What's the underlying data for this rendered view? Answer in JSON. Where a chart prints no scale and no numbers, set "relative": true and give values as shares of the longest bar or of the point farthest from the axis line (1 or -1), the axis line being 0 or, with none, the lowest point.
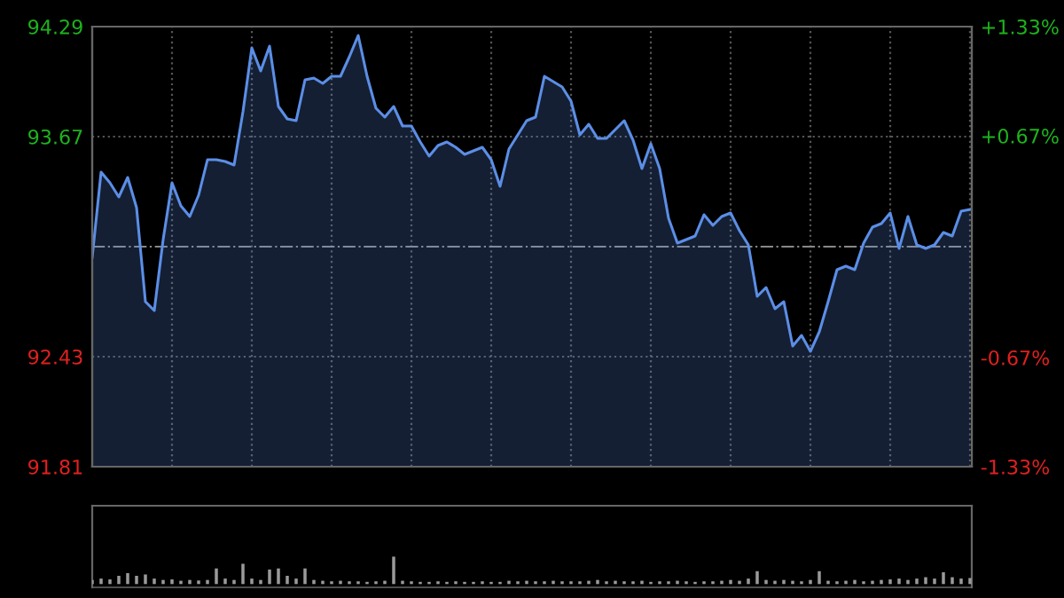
{
  "chart_data": [
    {
      "type": "area",
      "categories": [
        null,
        null,
        null,
        null,
        null,
        null,
        null,
        null,
        null,
        null,
        null,
        null,
        null,
        null,
        null,
        null,
        null,
        null,
        null,
        null,
        null,
        null,
        null,
        null,
        null,
        null,
        null,
        null,
        null,
        null,
        null,
        null,
        null,
        null,
        null,
        null,
        null,
        null,
        null,
        null,
        null,
        null,
        null,
        null,
        null,
        null,
        null,
        null,
        null,
        null,
        null,
        null,
        null,
        null,
        null,
        null,
        null,
        null,
        null,
        null,
        null,
        null,
        null,
        null,
        null,
        null,
        null,
        null,
        null,
        null,
        null,
        null,
        null,
        null,
        null,
        null,
        null,
        null,
        null,
        null,
        null,
        null,
        null,
        null,
        null,
        null,
        null,
        null,
        null,
        null,
        null,
        null,
        null,
        null,
        null,
        null,
        null,
        null,
        null,
        null
      ],
      "series": [
        {
          "color": "#5b8ee6",
          "values": [
            92.99,
            93.47,
            93.41,
            93.33,
            93.44,
            93.27,
            92.74,
            92.69,
            93.09,
            93.41,
            93.28,
            93.22,
            93.34,
            93.54,
            93.54,
            93.53,
            93.51,
            93.81,
            94.17,
            94.04,
            94.18,
            93.84,
            93.77,
            93.76,
            93.99,
            94.0,
            93.97,
            94.01,
            94.01,
            94.12,
            94.24,
            94.01,
            93.83,
            93.78,
            93.84,
            93.73,
            93.73,
            93.64,
            93.56,
            93.62,
            93.64,
            93.61,
            93.57,
            93.59,
            93.61,
            93.54,
            93.39,
            93.6,
            93.68,
            93.76,
            93.78,
            94.01,
            93.98,
            93.95,
            93.87,
            93.68,
            93.74,
            93.66,
            93.66,
            93.71,
            93.76,
            93.65,
            93.49,
            93.63,
            93.49,
            93.21,
            93.07,
            93.09,
            93.11,
            93.23,
            93.17,
            93.22,
            93.24,
            93.14,
            93.06,
            92.77,
            92.82,
            92.7,
            92.74,
            92.49,
            92.55,
            92.46,
            92.57,
            92.74,
            92.92,
            92.94,
            92.92,
            93.07,
            93.16,
            93.18,
            93.24,
            93.04,
            93.22,
            93.06,
            93.04,
            93.06,
            93.13,
            93.11,
            93.25,
            93.26
          ]
        }
      ],
      "ylim": [
        91.81,
        94.29
      ],
      "yticks": [
        91.81,
        92.43,
        93.67,
        94.29
      ],
      "y2lim": [
        -1.33,
        1.33
      ],
      "y2ticks": [
        {
          "value": -1.33,
          "label": "-1.33%"
        },
        {
          "value": -0.67,
          "label": "-0.67%"
        },
        {
          "value": 0.67,
          "label": "+0.67%"
        },
        {
          "value": 1.33,
          "label": "+1.33%"
        }
      ],
      "ref_lines": [
        {
          "axis": "y",
          "value": 93.05,
          "color": "#888888",
          "line_style": "dashdot"
        }
      ],
      "grid": true
    },
    {
      "type": "bar",
      "relative": true,
      "color": "#9a9a9a",
      "categories": [
        null,
        null,
        null,
        null,
        null,
        null,
        null,
        null,
        null,
        null,
        null,
        null,
        null,
        null,
        null,
        null,
        null,
        null,
        null,
        null,
        null,
        null,
        null,
        null,
        null,
        null,
        null,
        null,
        null,
        null,
        null,
        null,
        null,
        null,
        null,
        null,
        null,
        null,
        null,
        null,
        null,
        null,
        null,
        null,
        null,
        null,
        null,
        null,
        null,
        null,
        null,
        null,
        null,
        null,
        null,
        null,
        null,
        null,
        null,
        null,
        null,
        null,
        null,
        null,
        null,
        null,
        null,
        null,
        null,
        null,
        null,
        null,
        null,
        null,
        null,
        null,
        null,
        null,
        null,
        null,
        null,
        null,
        null,
        null,
        null,
        null,
        null,
        null,
        null,
        null,
        null,
        null,
        null,
        null,
        null,
        null,
        null,
        null,
        null,
        null
      ],
      "values": [
        0.15,
        0.2,
        0.17,
        0.3,
        0.4,
        0.3,
        0.35,
        0.2,
        0.15,
        0.17,
        0.12,
        0.15,
        0.13,
        0.15,
        0.57,
        0.2,
        0.15,
        0.74,
        0.2,
        0.15,
        0.53,
        0.57,
        0.3,
        0.2,
        0.57,
        0.15,
        0.12,
        0.1,
        0.12,
        0.1,
        0.1,
        0.08,
        0.1,
        0.12,
        1,
        0.12,
        0.1,
        0.08,
        0.08,
        0.1,
        0.08,
        0.1,
        0.08,
        0.08,
        0.1,
        0.08,
        0.08,
        0.12,
        0.1,
        0.12,
        0.1,
        0.1,
        0.12,
        0.1,
        0.1,
        0.1,
        0.12,
        0.15,
        0.1,
        0.12,
        0.1,
        0.1,
        0.12,
        0.08,
        0.1,
        0.1,
        0.12,
        0.1,
        0.08,
        0.1,
        0.1,
        0.12,
        0.15,
        0.12,
        0.2,
        0.47,
        0.15,
        0.12,
        0.15,
        0.12,
        0.1,
        0.15,
        0.47,
        0.12,
        0.1,
        0.12,
        0.15,
        0.1,
        0.12,
        0.15,
        0.17,
        0.2,
        0.15,
        0.2,
        0.25,
        0.2,
        0.43,
        0.25,
        0.2,
        0.22
      ]
    }
  ]
}
